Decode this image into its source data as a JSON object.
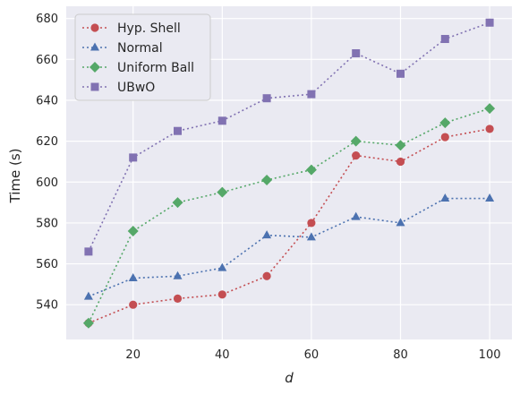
{
  "chart_data": {
    "type": "line",
    "title": "",
    "xlabel": "d",
    "ylabel": "Time (s)",
    "xlim": [
      5,
      105
    ],
    "ylim": [
      523,
      686
    ],
    "xticks": [
      20,
      40,
      60,
      80,
      100
    ],
    "yticks": [
      540,
      560,
      580,
      600,
      620,
      640,
      660,
      680
    ],
    "grid": true,
    "legend_position": "top-left",
    "x": [
      10,
      20,
      30,
      40,
      50,
      60,
      70,
      80,
      90,
      100
    ],
    "series": [
      {
        "name": "Hyp. Shell",
        "marker": "circle",
        "color": "#c44e52",
        "values": [
          531,
          540,
          543,
          545,
          554,
          580,
          613,
          610,
          622,
          626
        ]
      },
      {
        "name": "Normal",
        "marker": "triangle",
        "color": "#4c72b0",
        "values": [
          544,
          553,
          554,
          558,
          574,
          573,
          583,
          580,
          592,
          592
        ]
      },
      {
        "name": "Uniform Ball",
        "marker": "diamond",
        "color": "#55a868",
        "values": [
          531,
          576,
          590,
          595,
          601,
          606,
          620,
          618,
          629,
          636
        ]
      },
      {
        "name": "UBwO",
        "marker": "square",
        "color": "#8172b2",
        "values": [
          566,
          612,
          625,
          630,
          641,
          643,
          663,
          653,
          670,
          678
        ]
      }
    ]
  }
}
